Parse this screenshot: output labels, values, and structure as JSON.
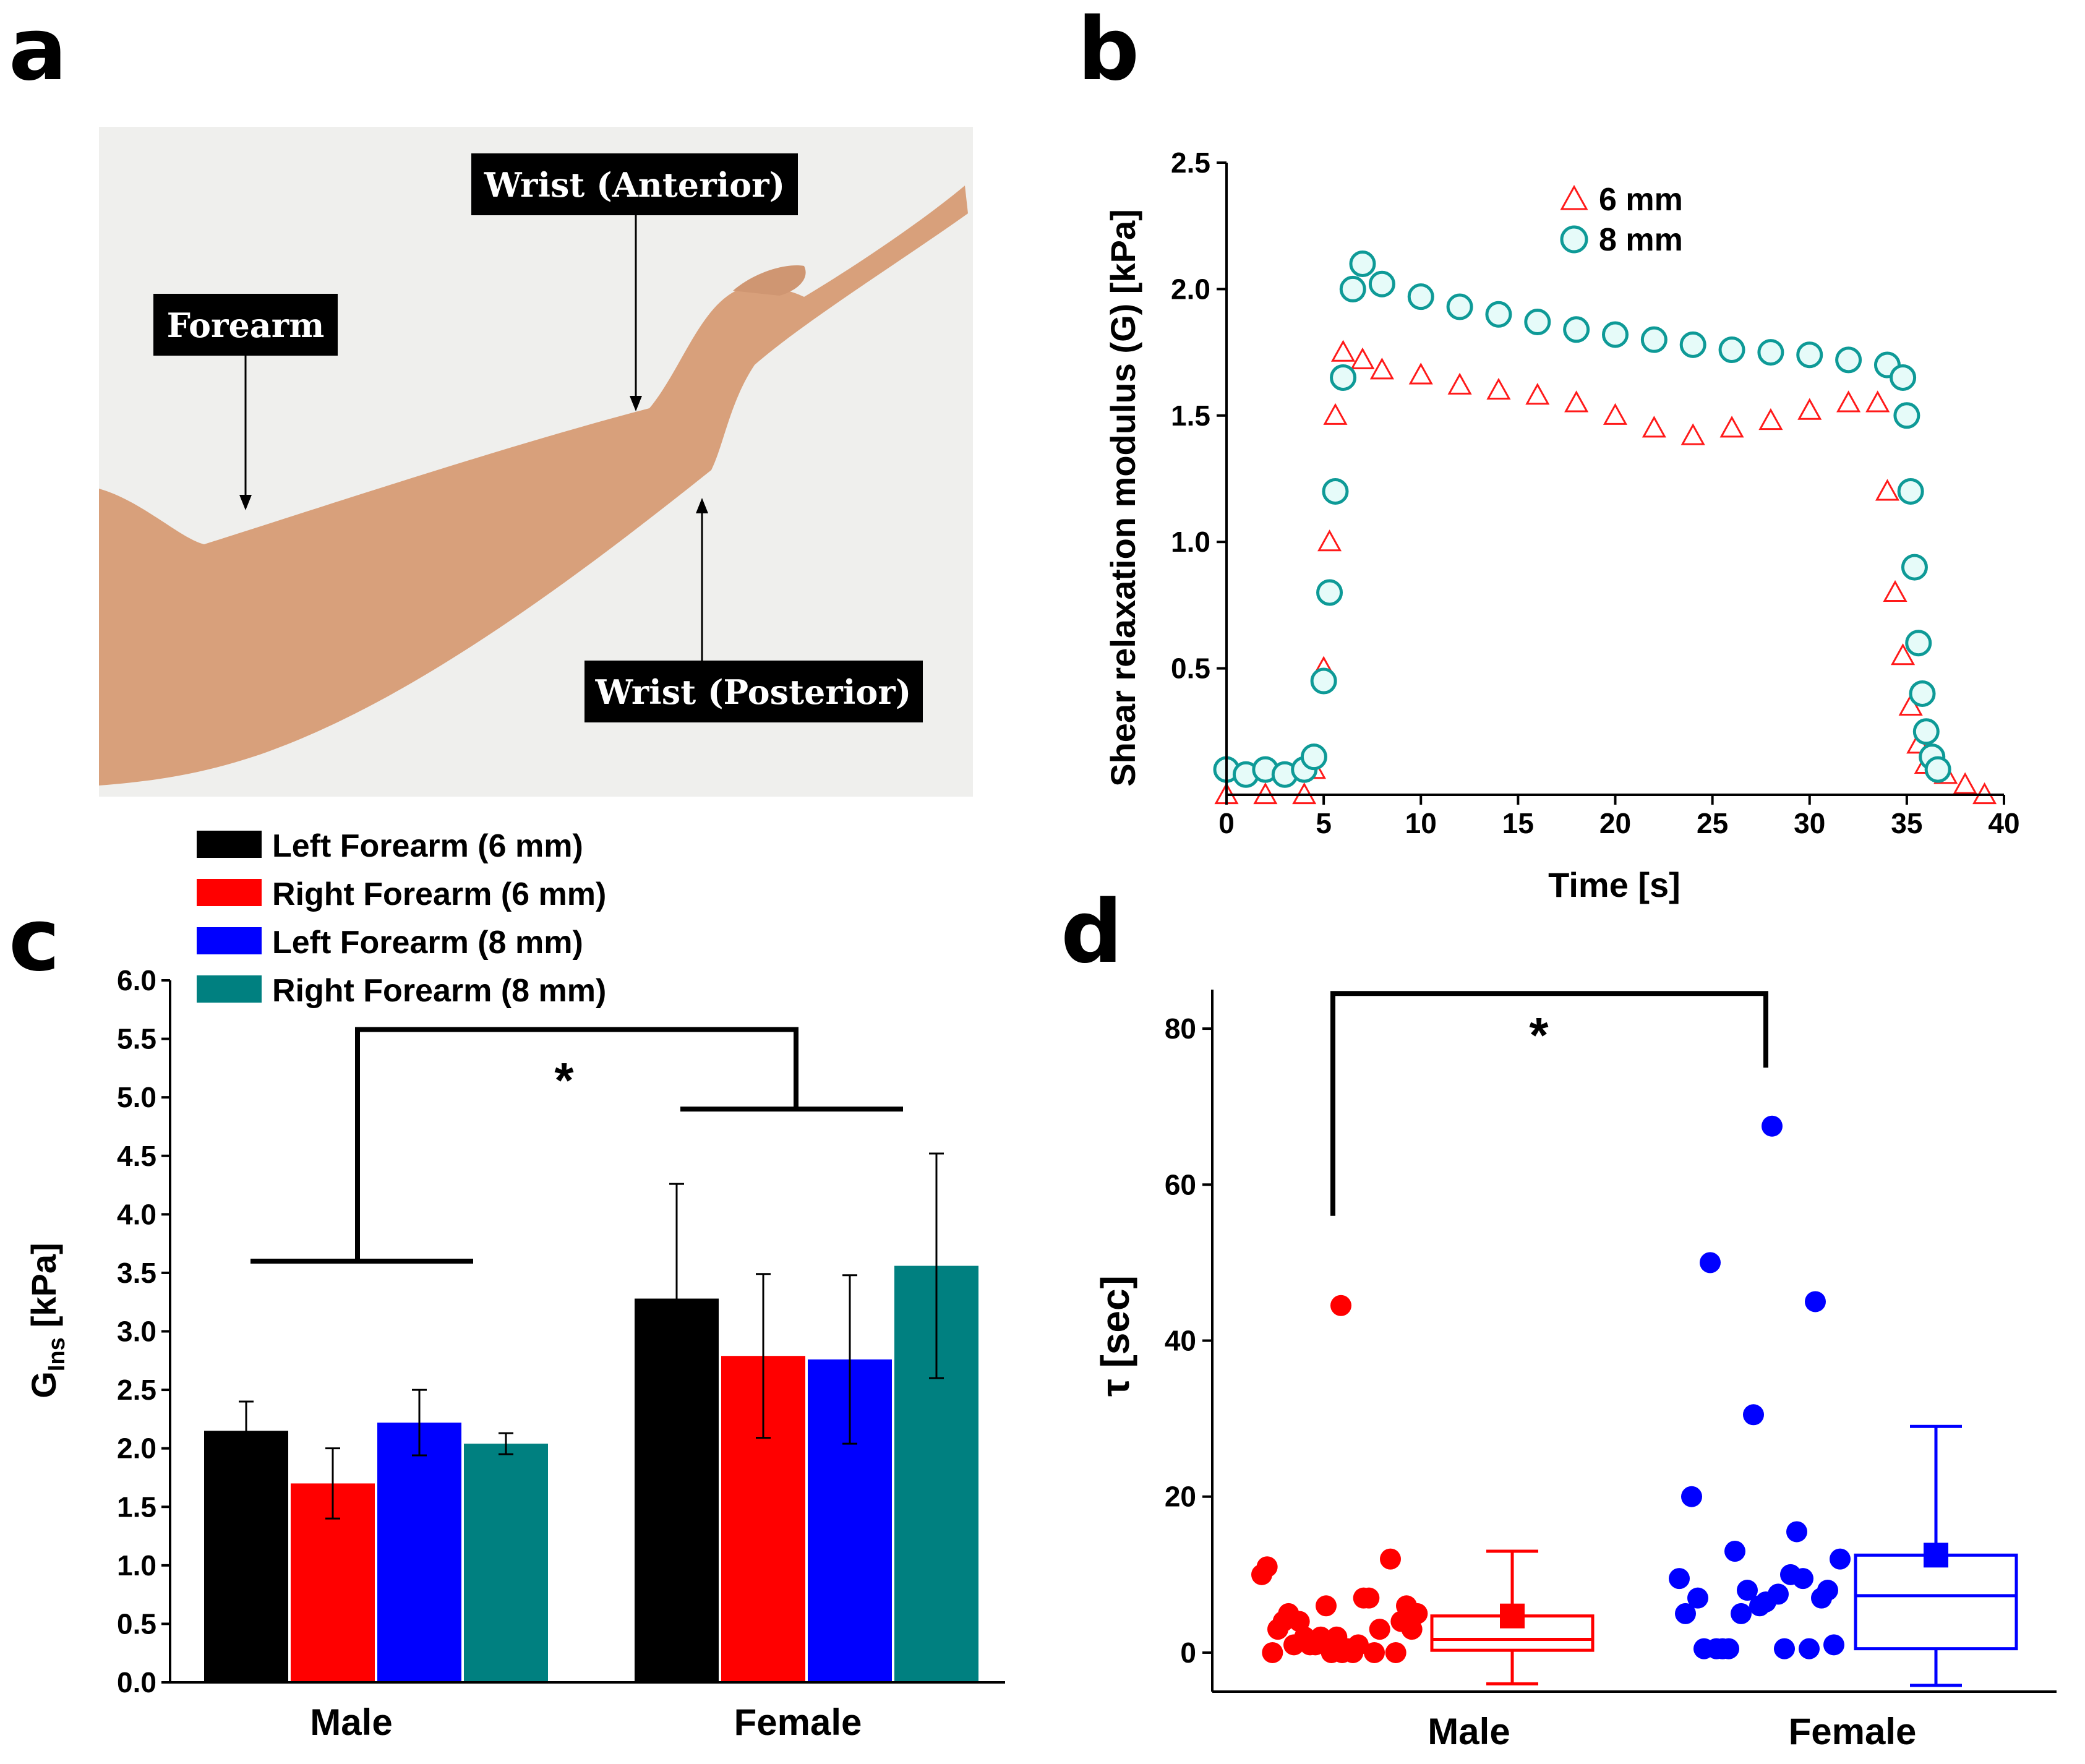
{
  "panels": {
    "a": {
      "label": "a",
      "tags": {
        "forearm": "Forearm",
        "wrist_anterior": "Wrist (Anterior)",
        "wrist_posterior": "Wrist (Posterior)"
      }
    },
    "b": {
      "label": "b"
    },
    "c": {
      "label": "c"
    },
    "d": {
      "label": "d"
    }
  },
  "colors": {
    "black": "#000000",
    "red": "#ff0000",
    "blue": "#0000ff",
    "teal": "#008080",
    "tri": "#ff1a1a",
    "circ": "#0e9a97",
    "circ_fill": "#e6fbf9",
    "skin": "#d9a17c",
    "wall": "#eeeeec"
  },
  "chart_data": [
    {
      "id": "b",
      "type": "scatter",
      "title": "",
      "xlabel": "Time [s]",
      "ylabel": "Shear relaxation modulus (G) [kPa]",
      "xlim": [
        0,
        40
      ],
      "ylim": [
        0,
        2.5
      ],
      "xticks": [
        "0",
        "5",
        "10",
        "15",
        "20",
        "25",
        "30",
        "35",
        "40"
      ],
      "yticks": [
        "0.5",
        "1.0",
        "1.5",
        "2.0",
        "2.5"
      ],
      "series": [
        {
          "name": "6 mm",
          "marker": "triangle",
          "x": [
            0,
            2,
            4,
            4.5,
            5,
            5.3,
            5.6,
            6,
            7,
            8,
            10,
            12,
            14,
            16,
            18,
            20,
            22,
            24,
            26,
            28,
            30,
            32,
            33.5,
            34,
            34.4,
            34.8,
            35.2,
            35.6,
            36,
            37,
            38,
            39
          ],
          "y": [
            0,
            0,
            0,
            0.1,
            0.5,
            1.0,
            1.5,
            1.75,
            1.72,
            1.68,
            1.66,
            1.62,
            1.6,
            1.58,
            1.55,
            1.5,
            1.45,
            1.42,
            1.45,
            1.48,
            1.52,
            1.55,
            1.55,
            1.2,
            0.8,
            0.55,
            0.35,
            0.2,
            0.12,
            0.08,
            0.04,
            0
          ]
        },
        {
          "name": "8 mm",
          "marker": "circle",
          "x": [
            0,
            1,
            2,
            3,
            4,
            4.5,
            5,
            5.3,
            5.6,
            6,
            6.5,
            7,
            8,
            10,
            12,
            14,
            16,
            18,
            20,
            22,
            24,
            26,
            28,
            30,
            32,
            34,
            34.8,
            35,
            35.2,
            35.4,
            35.6,
            35.8,
            36,
            36.3,
            36.6
          ],
          "y": [
            0.1,
            0.08,
            0.1,
            0.08,
            0.1,
            0.15,
            0.45,
            0.8,
            1.2,
            1.65,
            2.0,
            2.1,
            2.02,
            1.97,
            1.93,
            1.9,
            1.87,
            1.84,
            1.82,
            1.8,
            1.78,
            1.76,
            1.75,
            1.74,
            1.72,
            1.7,
            1.65,
            1.5,
            1.2,
            0.9,
            0.6,
            0.4,
            0.25,
            0.15,
            0.1
          ]
        }
      ],
      "legend": "top-center"
    },
    {
      "id": "c",
      "type": "bar",
      "xlabel": "",
      "ylabel": "G",
      "ylabel_sub": "Ins",
      "ylabel_unit": "[kPa]",
      "ylim": [
        0,
        6
      ],
      "yticks": [
        "0.0",
        "0.5",
        "1.0",
        "1.5",
        "2.0",
        "2.5",
        "3.0",
        "3.5",
        "4.0",
        "4.5",
        "5.0",
        "5.5",
        "6.0"
      ],
      "categories": [
        "Male",
        "Female"
      ],
      "series": [
        {
          "name": "Left Forearm (6 mm)",
          "values": [
            2.15,
            3.28
          ],
          "errors": [
            0.25,
            0.98
          ]
        },
        {
          "name": "Right Forearm (6 mm)",
          "values": [
            1.7,
            2.79
          ],
          "errors": [
            0.3,
            0.7
          ]
        },
        {
          "name": "Left Forearm (8 mm)",
          "values": [
            2.22,
            2.76
          ],
          "errors": [
            0.28,
            0.72
          ]
        },
        {
          "name": "Right Forearm (8 mm)",
          "values": [
            2.04,
            3.56
          ],
          "errors": [
            0.09,
            0.96
          ]
        }
      ],
      "significance": {
        "text": "*",
        "group_y": [
          3.6,
          4.9
        ],
        "top_y": 5.58
      },
      "legend": "top-left"
    },
    {
      "id": "d",
      "type": "scatter",
      "xlabel": "",
      "ylabel": "τ [sec]",
      "ylim": [
        -5,
        85
      ],
      "yticks": [
        "0",
        "20",
        "40",
        "60",
        "80"
      ],
      "categories": [
        "Male",
        "Female"
      ],
      "male_points": [
        10,
        4,
        2,
        0,
        3,
        5,
        6,
        7,
        4,
        3,
        1,
        0,
        12,
        11,
        2,
        0,
        3,
        5,
        1,
        0,
        7,
        6,
        4,
        2,
        1,
        0,
        0,
        1,
        0.5,
        44.5
      ],
      "female_points": [
        9.5,
        5,
        9.5,
        7,
        6,
        7,
        0.5,
        7.5,
        12,
        13,
        15.5,
        20,
        30.5,
        45,
        50,
        67.5,
        1,
        0.5,
        10,
        5,
        8,
        0.5,
        0.5,
        6.5,
        8,
        0.5,
        0.5
      ],
      "boxes": [
        {
          "category": "Male",
          "q1": 0.3,
          "median": 1.7,
          "q3": 4.7,
          "mean": 4.7,
          "whisker_low": -4,
          "whisker_high": 13
        },
        {
          "category": "Female",
          "q1": 0.5,
          "median": 7.3,
          "q3": 12.5,
          "mean": 12.5,
          "whisker_low": -4.2,
          "whisker_high": 29
        }
      ],
      "significance": {
        "text": "*",
        "left_y": 56,
        "right_y": 75,
        "top_y": 84.5
      }
    }
  ]
}
